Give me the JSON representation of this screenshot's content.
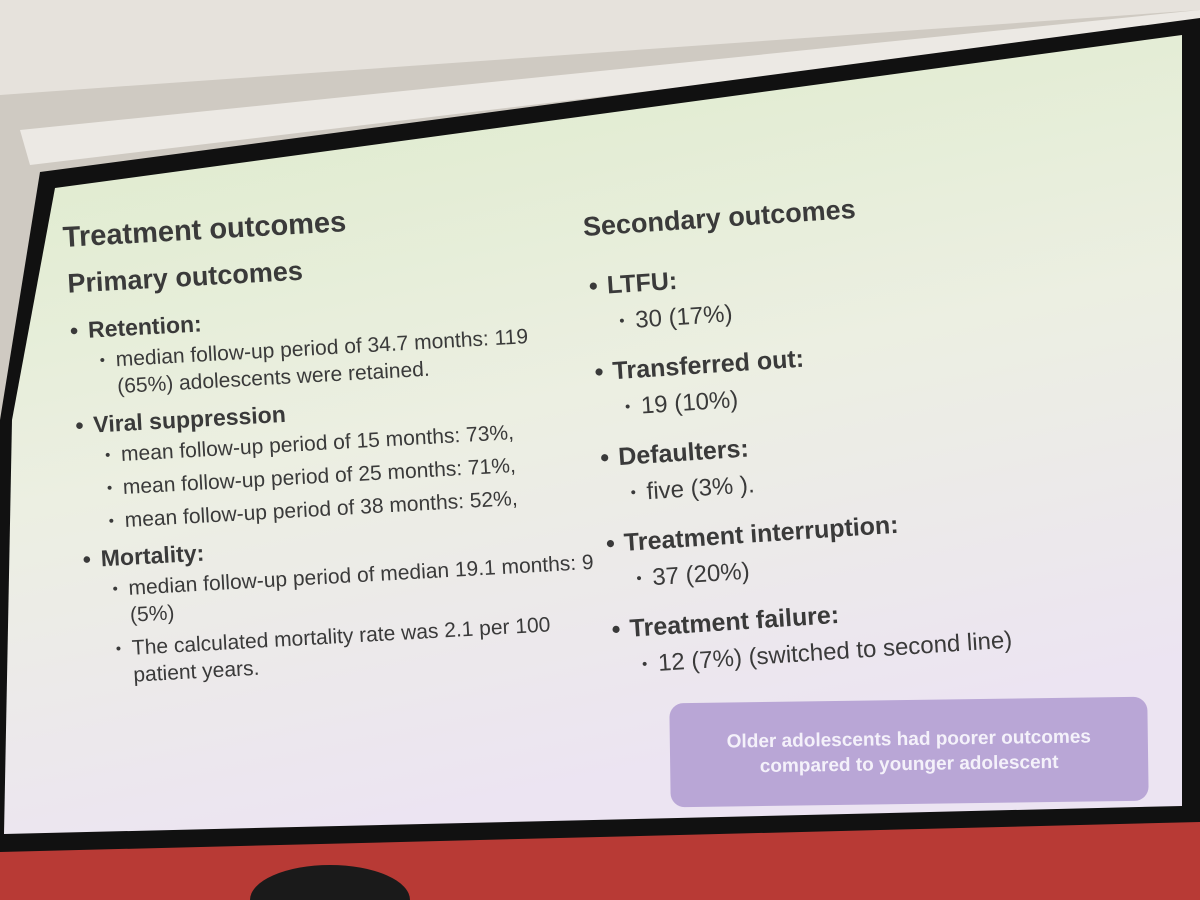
{
  "slide": {
    "title": "Treatment outcomes",
    "left": {
      "heading": "Primary outcomes",
      "items": [
        {
          "label": "Retention:",
          "subitems": [
            "median follow-up period of 34.7 months: 119 (65%) adolescents were retained."
          ]
        },
        {
          "label": "Viral suppression",
          "subitems": [
            "mean follow-up period of 15 months: 73%,",
            "mean follow-up period of 25 months: 71%,",
            "mean follow-up period of 38 months: 52%,"
          ]
        },
        {
          "label": "Mortality:",
          "subitems": [
            "median follow-up period of median 19.1 months: 9 (5%)",
            "The calculated mortality rate was 2.1 per 100 patient years."
          ]
        }
      ]
    },
    "right": {
      "heading": "Secondary outcomes",
      "items": [
        {
          "label": "LTFU:",
          "subitems": [
            "30 (17%)"
          ]
        },
        {
          "label": "Transferred out:",
          "subitems": [
            "19 (10%)"
          ]
        },
        {
          "label": "Defaulters:",
          "subitems": [
            "five (3% )."
          ]
        },
        {
          "label": "Treatment interruption:",
          "subitems": [
            "37 (20%)"
          ]
        },
        {
          "label": "Treatment failure:",
          "subitems": [
            "12 (7%) (switched to second line)"
          ]
        }
      ]
    },
    "callout": "Older adolescents had poorer outcomes compared to younger adolescent"
  }
}
